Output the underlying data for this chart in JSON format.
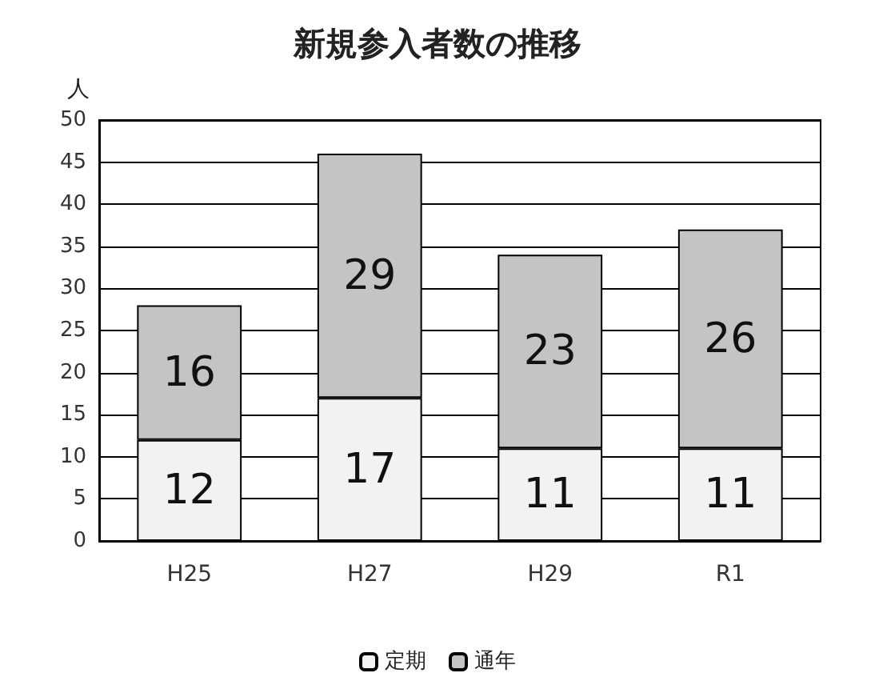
{
  "chart_data": {
    "type": "bar",
    "title": "新規参入者数の推移",
    "ylabel": "人",
    "categories": [
      "H25",
      "H27",
      "H29",
      "R1"
    ],
    "series": [
      {
        "name": "定期",
        "color": "#f2f2f2",
        "values": [
          12,
          17,
          11,
          11
        ]
      },
      {
        "name": "通年",
        "color": "#c4c4c4",
        "values": [
          16,
          29,
          23,
          26
        ]
      }
    ],
    "stacked": true,
    "ylim": [
      0,
      50
    ],
    "yticks": [
      0,
      5,
      10,
      15,
      20,
      25,
      30,
      35,
      40,
      45,
      50
    ],
    "grid": "y",
    "legend": "bottom",
    "data_labels": true
  }
}
